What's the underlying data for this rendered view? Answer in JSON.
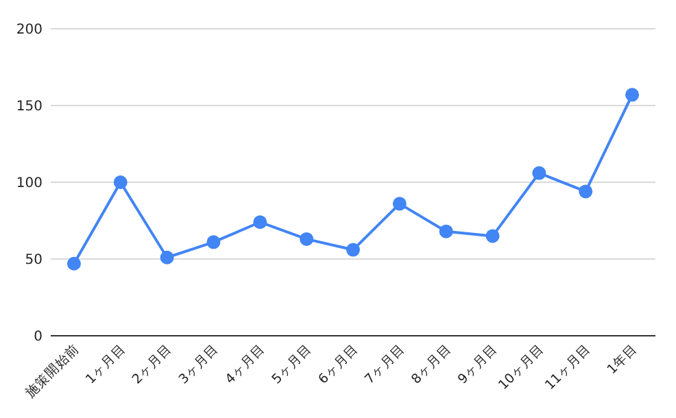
{
  "chart_data": {
    "type": "line",
    "categories": [
      "施策開始前",
      "1ヶ月目",
      "2ヶ月目",
      "3ヶ月目",
      "4ヶ月目",
      "5ヶ月目",
      "6ヶ月目",
      "7ヶ月目",
      "8ヶ月目",
      "9ヶ月目",
      "10ヶ月目",
      "11ヶ月目",
      "1年目"
    ],
    "series": [
      {
        "color": "#4285f4",
        "values": [
          47,
          100,
          51,
          61,
          74,
          63,
          56,
          86,
          68,
          65,
          106,
          94,
          157
        ]
      }
    ],
    "ylim": [
      0,
      200
    ],
    "yticks": [
      0,
      50,
      100,
      150,
      200
    ],
    "grid": "y",
    "marker": "circle",
    "line_style": "solid"
  }
}
